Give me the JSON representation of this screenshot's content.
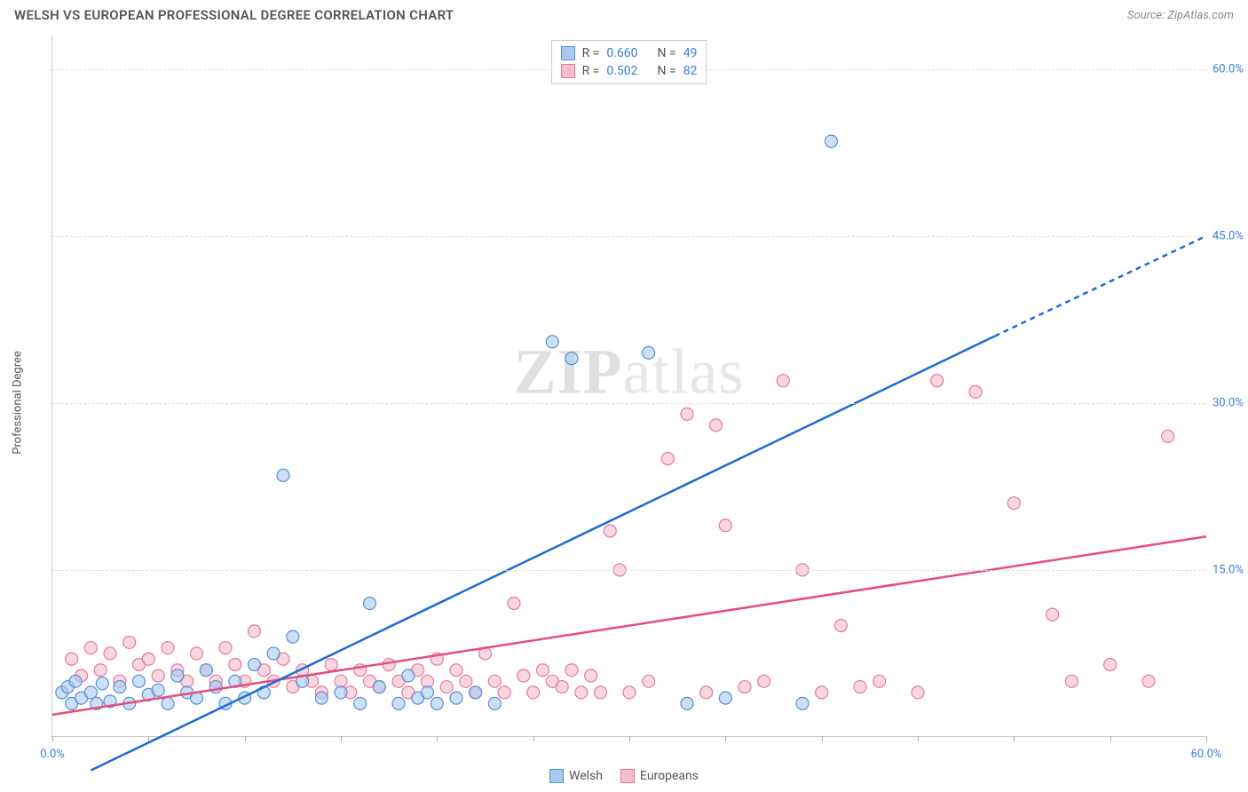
{
  "header": {
    "title": "WELSH VS EUROPEAN PROFESSIONAL DEGREE CORRELATION CHART",
    "source": "Source: ZipAtlas.com"
  },
  "axis": {
    "y_label": "Professional Degree",
    "x_min": 0.0,
    "x_max": 60.0,
    "y_min": 0.0,
    "y_max": 63.0,
    "y_ticks": [
      15.0,
      30.0,
      45.0,
      60.0
    ],
    "y_tick_labels": [
      "15.0%",
      "30.0%",
      "45.0%",
      "60.0%"
    ],
    "x_ticks": [
      0,
      5,
      10,
      15,
      20,
      25,
      30,
      35,
      40,
      45,
      50,
      55,
      60
    ],
    "x_tick_labels": {
      "0": "0.0%",
      "60": "60.0%"
    }
  },
  "series": {
    "welsh": {
      "label": "Welsh",
      "color_fill": "#a9c9ef",
      "color_stroke": "#5a8fd6",
      "line_color": "#1e6bd6",
      "r_label": "R =",
      "r_value": "0.660",
      "n_label": "N =",
      "n_value": "49",
      "regression": {
        "x1": 2.0,
        "y1": -3.0,
        "x2": 49.0,
        "y2": 36.0
      },
      "regression_dash": {
        "x1": 49.0,
        "y1": 36.0,
        "x2": 60.0,
        "y2": 45.0
      },
      "points": [
        [
          0.5,
          4.0
        ],
        [
          0.8,
          4.5
        ],
        [
          1.0,
          3.0
        ],
        [
          1.2,
          5.0
        ],
        [
          1.5,
          3.5
        ],
        [
          2.0,
          4.0
        ],
        [
          2.3,
          3.0
        ],
        [
          2.6,
          4.8
        ],
        [
          3.0,
          3.2
        ],
        [
          3.5,
          4.5
        ],
        [
          4.0,
          3.0
        ],
        [
          4.5,
          5.0
        ],
        [
          5.0,
          3.8
        ],
        [
          5.5,
          4.2
        ],
        [
          6.0,
          3.0
        ],
        [
          6.5,
          5.5
        ],
        [
          7.0,
          4.0
        ],
        [
          7.5,
          3.5
        ],
        [
          8.0,
          6.0
        ],
        [
          8.5,
          4.5
        ],
        [
          9.0,
          3.0
        ],
        [
          9.5,
          5.0
        ],
        [
          10.0,
          3.5
        ],
        [
          10.5,
          6.5
        ],
        [
          11.0,
          4.0
        ],
        [
          11.5,
          7.5
        ],
        [
          12.0,
          23.5
        ],
        [
          12.5,
          9.0
        ],
        [
          13.0,
          5.0
        ],
        [
          14.0,
          3.5
        ],
        [
          15.0,
          4.0
        ],
        [
          16.0,
          3.0
        ],
        [
          16.5,
          12.0
        ],
        [
          17.0,
          4.5
        ],
        [
          18.0,
          3.0
        ],
        [
          18.5,
          5.5
        ],
        [
          19.0,
          3.5
        ],
        [
          19.5,
          4.0
        ],
        [
          20.0,
          3.0
        ],
        [
          21.0,
          3.5
        ],
        [
          22.0,
          4.0
        ],
        [
          23.0,
          3.0
        ],
        [
          26.0,
          35.5
        ],
        [
          27.0,
          34.0
        ],
        [
          31.0,
          34.5
        ],
        [
          33.0,
          3.0
        ],
        [
          35.0,
          3.5
        ],
        [
          39.0,
          3.0
        ],
        [
          40.5,
          53.5
        ]
      ]
    },
    "europeans": {
      "label": "Europeans",
      "color_fill": "#f5bccb",
      "color_stroke": "#e77a9a",
      "line_color": "#e84c7a",
      "r_label": "R =",
      "r_value": "0.502",
      "n_label": "N =",
      "n_value": "82",
      "regression": {
        "x1": 0.0,
        "y1": 2.0,
        "x2": 60.0,
        "y2": 18.0
      },
      "points": [
        [
          1.0,
          7.0
        ],
        [
          1.5,
          5.5
        ],
        [
          2.0,
          8.0
        ],
        [
          2.5,
          6.0
        ],
        [
          3.0,
          7.5
        ],
        [
          3.5,
          5.0
        ],
        [
          4.0,
          8.5
        ],
        [
          4.5,
          6.5
        ],
        [
          5.0,
          7.0
        ],
        [
          5.5,
          5.5
        ],
        [
          6.0,
          8.0
        ],
        [
          6.5,
          6.0
        ],
        [
          7.0,
          5.0
        ],
        [
          7.5,
          7.5
        ],
        [
          8.0,
          6.0
        ],
        [
          8.5,
          5.0
        ],
        [
          9.0,
          8.0
        ],
        [
          9.5,
          6.5
        ],
        [
          10.0,
          5.0
        ],
        [
          10.5,
          9.5
        ],
        [
          11.0,
          6.0
        ],
        [
          11.5,
          5.0
        ],
        [
          12.0,
          7.0
        ],
        [
          12.5,
          4.5
        ],
        [
          13.0,
          6.0
        ],
        [
          13.5,
          5.0
        ],
        [
          14.0,
          4.0
        ],
        [
          14.5,
          6.5
        ],
        [
          15.0,
          5.0
        ],
        [
          15.5,
          4.0
        ],
        [
          16.0,
          6.0
        ],
        [
          16.5,
          5.0
        ],
        [
          17.0,
          4.5
        ],
        [
          17.5,
          6.5
        ],
        [
          18.0,
          5.0
        ],
        [
          18.5,
          4.0
        ],
        [
          19.0,
          6.0
        ],
        [
          19.5,
          5.0
        ],
        [
          20.0,
          7.0
        ],
        [
          20.5,
          4.5
        ],
        [
          21.0,
          6.0
        ],
        [
          21.5,
          5.0
        ],
        [
          22.0,
          4.0
        ],
        [
          22.5,
          7.5
        ],
        [
          23.0,
          5.0
        ],
        [
          23.5,
          4.0
        ],
        [
          24.0,
          12.0
        ],
        [
          24.5,
          5.5
        ],
        [
          25.0,
          4.0
        ],
        [
          25.5,
          6.0
        ],
        [
          26.0,
          5.0
        ],
        [
          26.5,
          4.5
        ],
        [
          27.0,
          6.0
        ],
        [
          27.5,
          4.0
        ],
        [
          28.0,
          5.5
        ],
        [
          28.5,
          4.0
        ],
        [
          29.0,
          18.5
        ],
        [
          29.5,
          15.0
        ],
        [
          30.0,
          4.0
        ],
        [
          31.0,
          5.0
        ],
        [
          32.0,
          25.0
        ],
        [
          33.0,
          29.0
        ],
        [
          34.0,
          4.0
        ],
        [
          34.5,
          28.0
        ],
        [
          35.0,
          19.0
        ],
        [
          36.0,
          4.5
        ],
        [
          37.0,
          5.0
        ],
        [
          38.0,
          32.0
        ],
        [
          39.0,
          15.0
        ],
        [
          40.0,
          4.0
        ],
        [
          41.0,
          10.0
        ],
        [
          42.0,
          4.5
        ],
        [
          43.0,
          5.0
        ],
        [
          45.0,
          4.0
        ],
        [
          46.0,
          32.0
        ],
        [
          48.0,
          31.0
        ],
        [
          50.0,
          21.0
        ],
        [
          52.0,
          11.0
        ],
        [
          53.0,
          5.0
        ],
        [
          55.0,
          6.5
        ],
        [
          57.0,
          5.0
        ],
        [
          58.0,
          27.0
        ]
      ]
    }
  },
  "watermark": {
    "part1": "ZIP",
    "part2": "atlas"
  },
  "styling": {
    "background_color": "#ffffff",
    "grid_color": "#dddddd",
    "axis_color": "#cccccc",
    "tick_label_color": "#3b7dd8",
    "axis_label_color": "#555555",
    "marker_radius": 7,
    "marker_stroke_width": 1.2,
    "line_width": 2.5
  }
}
